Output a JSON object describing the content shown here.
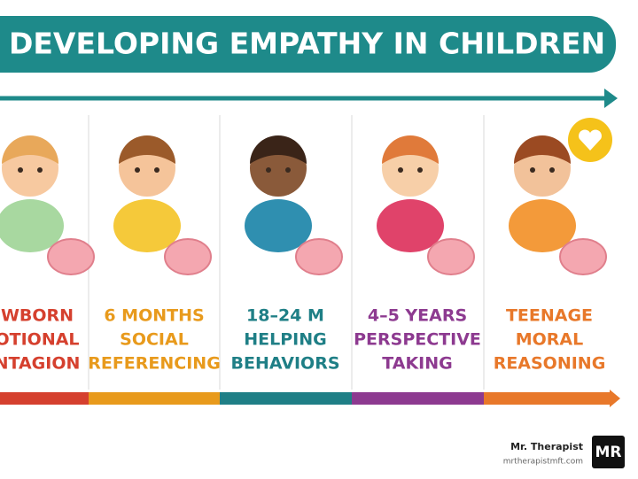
{
  "header": {
    "title": "DEVELOPING EMPATHY IN CHILDREN"
  },
  "stages": [
    {
      "lines": [
        "WBORN",
        "OTIONAL",
        "NTAGION"
      ]
    },
    {
      "lines": [
        "6 MONTHS",
        "SOCIAL",
        "REFERENCING"
      ]
    },
    {
      "lines": [
        "18–24 M",
        "HELPING",
        "BEHAVIORS"
      ]
    },
    {
      "lines": [
        "4–5 YEARS",
        "PERSPECTIVE",
        "TAKING"
      ]
    },
    {
      "lines": [
        "TEENAGE",
        "MORAL",
        "REASONING"
      ]
    }
  ],
  "footer": {
    "brand": "Mr. Therapist",
    "url": "mrtherapistmft.com",
    "logo": "MR"
  }
}
